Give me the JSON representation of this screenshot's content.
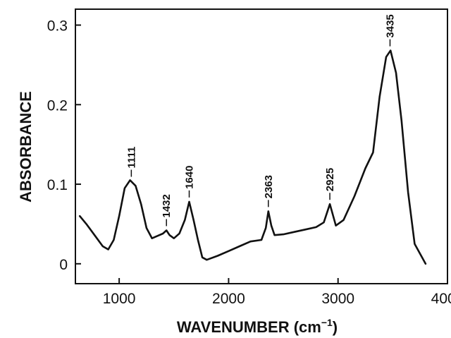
{
  "chart_data": {
    "type": "line",
    "xlabel": "WAVENUMBER (cm",
    "xlabel_exponent": "−1",
    "xlabel_close": ")",
    "ylabel": "ABSORBANCE",
    "xlim": [
      600,
      4000
    ],
    "ylim": [
      -0.025,
      0.32
    ],
    "x_ticks": [
      1000,
      2000,
      3000,
      4000
    ],
    "x_tick_labels": [
      "1000",
      "2000",
      "3000",
      "4000"
    ],
    "y_ticks": [
      0,
      0.1,
      0.2,
      0.3
    ],
    "y_tick_labels": [
      "0",
      "0.1",
      "0.2",
      "0.3"
    ],
    "grid": false,
    "series": [
      {
        "x": [
          640,
          700,
          780,
          850,
          900,
          950,
          1000,
          1050,
          1100,
          1150,
          1200,
          1250,
          1300,
          1350,
          1400,
          1432,
          1460,
          1500,
          1550,
          1600,
          1640,
          1680,
          1720,
          1760,
          1800,
          1900,
          2000,
          2100,
          2200,
          2300,
          2340,
          2363,
          2390,
          2420,
          2500,
          2600,
          2700,
          2800,
          2870,
          2925,
          2980,
          3050,
          3150,
          3250,
          3320,
          3380,
          3440,
          3480,
          3530,
          3580,
          3640,
          3700,
          3760,
          3800
        ],
        "y": [
          0.06,
          0.05,
          0.035,
          0.022,
          0.018,
          0.03,
          0.06,
          0.095,
          0.105,
          0.098,
          0.075,
          0.045,
          0.032,
          0.035,
          0.038,
          0.042,
          0.036,
          0.032,
          0.038,
          0.055,
          0.078,
          0.055,
          0.03,
          0.008,
          0.005,
          0.01,
          0.016,
          0.022,
          0.028,
          0.03,
          0.045,
          0.066,
          0.048,
          0.036,
          0.037,
          0.04,
          0.043,
          0.046,
          0.052,
          0.075,
          0.048,
          0.055,
          0.085,
          0.12,
          0.14,
          0.21,
          0.26,
          0.268,
          0.24,
          0.18,
          0.09,
          0.025,
          0.01,
          0.0
        ]
      }
    ],
    "annotations": [
      {
        "text": "1111",
        "x": 1111,
        "y": 0.104
      },
      {
        "text": "1432",
        "x": 1432,
        "y": 0.042
      },
      {
        "text": "1640",
        "x": 1640,
        "y": 0.078
      },
      {
        "text": "2363",
        "x": 2363,
        "y": 0.066
      },
      {
        "text": "2925",
        "x": 2925,
        "y": 0.075
      },
      {
        "text": "3435",
        "x": 3475,
        "y": 0.268
      }
    ]
  }
}
